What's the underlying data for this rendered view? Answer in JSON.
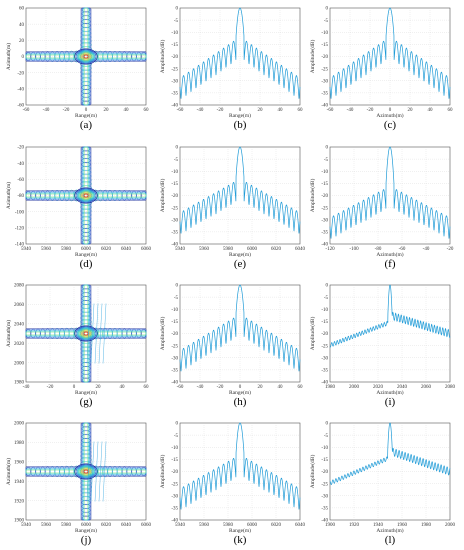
{
  "chart_data": [
    {
      "id": "a",
      "label": "(a)",
      "type": "contour",
      "xlabel": "Range(m)",
      "ylabel": "Azimuth(m)",
      "xlim": [
        -60,
        60
      ],
      "ylim": [
        -60,
        60
      ],
      "xticks": [
        "-60",
        "-40",
        "-20",
        "0",
        "20",
        "40",
        "60"
      ],
      "yticks": [
        "60",
        "40",
        "20",
        "0",
        "-20",
        "-40",
        "-60"
      ],
      "x_center": 0,
      "y_center": 0,
      "skew": 0
    },
    {
      "id": "b",
      "label": "(b)",
      "type": "line",
      "xlabel": "Range(m)",
      "ylabel": "Amplitude(dB)",
      "xlim": [
        -60,
        60
      ],
      "ylim": [
        -40,
        0
      ],
      "xticks": [
        "-60",
        "-40",
        "-20",
        "0",
        "20",
        "40",
        "60"
      ],
      "yticks": [
        "0",
        "-5",
        "-10",
        "-15",
        "-20",
        "-25",
        "-30",
        "-35",
        "-40"
      ],
      "peak_x": 0,
      "sidelobe_spacing": 5,
      "first_sidelobe_db": -13,
      "floor_db": -30,
      "smooth": false,
      "asymmetry": 0
    },
    {
      "id": "c",
      "label": "(c)",
      "type": "line",
      "xlabel": "Azimuth(m)",
      "ylabel": "Amplitude(dB)",
      "xlim": [
        -60,
        60
      ],
      "ylim": [
        -40,
        0
      ],
      "xticks": [
        "-60",
        "-40",
        "-20",
        "0",
        "20",
        "40",
        "60"
      ],
      "yticks": [
        "0",
        "-5",
        "-10",
        "-15",
        "-20",
        "-25",
        "-30",
        "-35",
        "-40"
      ],
      "peak_x": 0,
      "sidelobe_spacing": 5,
      "first_sidelobe_db": -13,
      "floor_db": -30,
      "smooth": false,
      "asymmetry": 0
    },
    {
      "id": "d",
      "label": "(d)",
      "type": "contour",
      "xlabel": "Range(m)",
      "ylabel": "Azimuth(m)",
      "xlim": [
        5940,
        6060
      ],
      "ylim": [
        -140,
        -20
      ],
      "xticks": [
        "5940",
        "5960",
        "5980",
        "6000",
        "6020",
        "6040",
        "6060"
      ],
      "yticks": [
        "-20",
        "-40",
        "-60",
        "-80",
        "-100",
        "-120",
        "-140"
      ],
      "x_center": 6000,
      "y_center": -80,
      "skew": 0
    },
    {
      "id": "e",
      "label": "(e)",
      "type": "line",
      "xlabel": "Range(m)",
      "ylabel": "Amplitude(dB)",
      "xlim": [
        5940,
        6060
      ],
      "ylim": [
        -40,
        0
      ],
      "xticks": [
        "5940",
        "5960",
        "5980",
        "6000",
        "6020",
        "6040"
      ],
      "yticks": [
        "0",
        "-5",
        "-10",
        "-15",
        "-20",
        "-25",
        "-30",
        "-35",
        "-40"
      ],
      "peak_x": 6000,
      "sidelobe_spacing": 5,
      "first_sidelobe_db": -14,
      "floor_db": -28,
      "smooth": false,
      "asymmetry": 0
    },
    {
      "id": "f",
      "label": "(f)",
      "type": "line",
      "xlabel": "Azimuth(m)",
      "ylabel": "Amplitude(dB)",
      "xlim": [
        -140,
        -20
      ],
      "ylim": [
        -40,
        0
      ],
      "xticks": [
        "-120",
        "-100",
        "-80",
        "-60",
        "-40",
        "-20"
      ],
      "yticks": [
        "0",
        "-5",
        "-10",
        "-15",
        "-20",
        "-25",
        "-30",
        "-35",
        "-40"
      ],
      "peak_x": -80,
      "sidelobe_spacing": 5,
      "first_sidelobe_db": -17,
      "floor_db": -30,
      "smooth": false,
      "asymmetry": 0
    },
    {
      "id": "g",
      "label": "(g)",
      "type": "contour",
      "xlabel": "Range(m)",
      "ylabel": "Azimuth(m)",
      "xlim": [
        -60,
        60
      ],
      "ylim": [
        1960,
        2090
      ],
      "xticks": [
        "-40",
        "-20",
        "0",
        "20",
        "40",
        "60"
      ],
      "yticks": [
        "2080",
        "2060",
        "2040",
        "2020",
        "2000",
        "1980"
      ],
      "x_center": 0,
      "y_center": 2025,
      "skew": 1
    },
    {
      "id": "h",
      "label": "(h)",
      "type": "line",
      "xlabel": "Range(m)",
      "ylabel": "Amplitude(dB)",
      "xlim": [
        -60,
        60
      ],
      "ylim": [
        -40,
        0
      ],
      "xticks": [
        "-60",
        "-40",
        "-20",
        "0",
        "20",
        "40",
        "60"
      ],
      "yticks": [
        "0",
        "-5",
        "-10",
        "-15",
        "-20",
        "-25",
        "-30",
        "-35",
        "-40"
      ],
      "peak_x": 0,
      "sidelobe_spacing": 5,
      "first_sidelobe_db": -13,
      "floor_db": -28,
      "smooth": false,
      "asymmetry": 0
    },
    {
      "id": "i",
      "label": "(i)",
      "type": "line",
      "xlabel": "Azimuth(m)",
      "ylabel": "Amplitude(dB)",
      "xlim": [
        1960,
        2090
      ],
      "ylim": [
        -40,
        0
      ],
      "xticks": [
        "1980",
        "2000",
        "2020",
        "2040",
        "2060",
        "2080"
      ],
      "yticks": [
        "0",
        "-5",
        "-10",
        "-15",
        "-20",
        "-25",
        "-30",
        "-35",
        "-40"
      ],
      "peak_x": 2025,
      "sidelobe_spacing": 3,
      "first_sidelobe_db": -15,
      "floor_db": -24,
      "smooth": true,
      "asymmetry": 0.3
    },
    {
      "id": "j",
      "label": "(j)",
      "type": "contour",
      "xlabel": "Range(m)",
      "ylabel": "Azimuth(m)",
      "xlim": [
        5940,
        6060
      ],
      "ylim": [
        1890,
        2010
      ],
      "xticks": [
        "5940",
        "5960",
        "5980",
        "6000",
        "6020",
        "6040",
        "6060"
      ],
      "yticks": [
        "2000",
        "1980",
        "1960",
        "1940",
        "1920",
        "1900"
      ],
      "x_center": 6000,
      "y_center": 1950,
      "skew": 1
    },
    {
      "id": "k",
      "label": "(k)",
      "type": "line",
      "xlabel": "Range(m)",
      "ylabel": "Amplitude(dB)",
      "xlim": [
        5940,
        6060
      ],
      "ylim": [
        -40,
        0
      ],
      "xticks": [
        "5940",
        "5960",
        "5980",
        "6000",
        "6020",
        "6040"
      ],
      "yticks": [
        "0",
        "-5",
        "-10",
        "-15",
        "-20",
        "-25",
        "-30",
        "-35",
        "-40"
      ],
      "peak_x": 6000,
      "sidelobe_spacing": 5,
      "first_sidelobe_db": -14,
      "floor_db": -28,
      "smooth": false,
      "asymmetry": 0
    },
    {
      "id": "l",
      "label": "(l)",
      "type": "line",
      "xlabel": "Azimuth(m)",
      "ylabel": "Amplitude(dB)",
      "xlim": [
        1890,
        2010
      ],
      "ylim": [
        -40,
        0
      ],
      "xticks": [
        "1900",
        "1920",
        "1940",
        "1960",
        "1980",
        "2000"
      ],
      "yticks": [
        "0",
        "-5",
        "-10",
        "-15",
        "-20",
        "-25",
        "-30",
        "-35",
        "-40"
      ],
      "peak_x": 1950,
      "sidelobe_spacing": 3,
      "first_sidelobe_db": -14,
      "floor_db": -24,
      "smooth": true,
      "asymmetry": 0.3
    }
  ],
  "colors": {
    "line": "#1f9bd7",
    "grid": "#cfcfcf",
    "axis": "#555555",
    "label": "#000000"
  }
}
